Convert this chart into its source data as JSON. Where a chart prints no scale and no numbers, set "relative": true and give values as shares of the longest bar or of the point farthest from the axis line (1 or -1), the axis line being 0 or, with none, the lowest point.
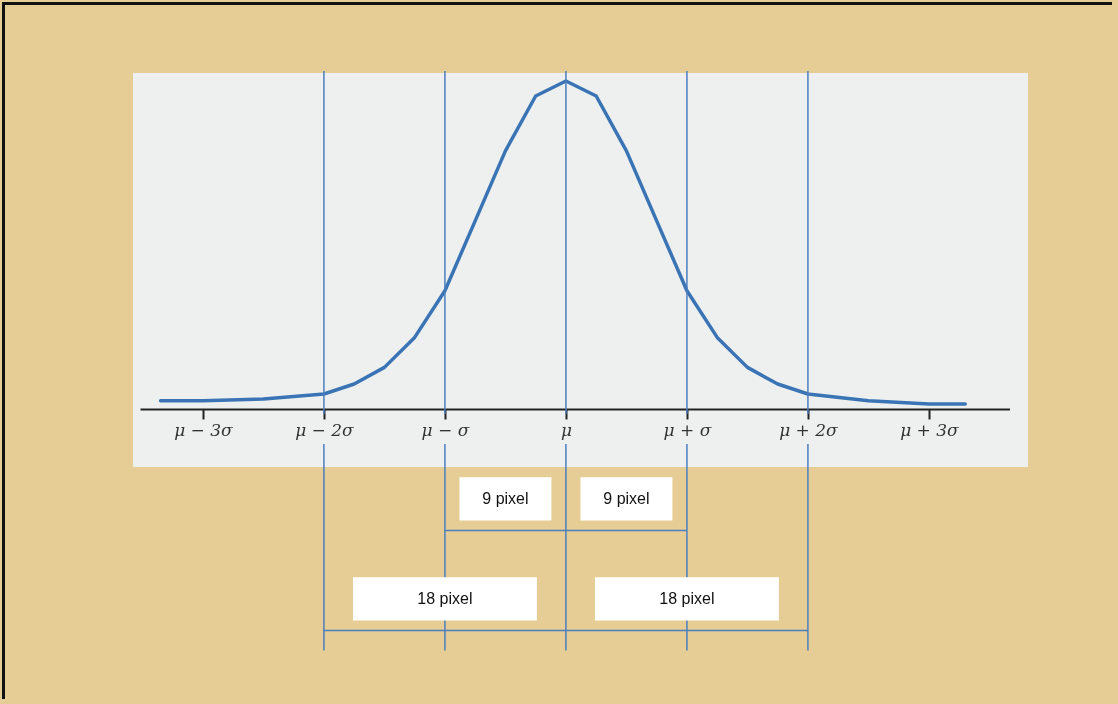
{
  "chart_data": {
    "type": "line",
    "relative": true,
    "x": [
      -3.35,
      -3,
      -2.5,
      -2,
      -1.75,
      -1.5,
      -1.25,
      -1,
      -0.75,
      -0.5,
      -0.25,
      0,
      0.25,
      0.5,
      0.75,
      1,
      1.25,
      1.5,
      1.75,
      2,
      2.5,
      3,
      3.3
    ],
    "series": [
      {
        "color": "#3a74b4",
        "values": [
          0.04,
          0.04,
          0.045,
          0.06,
          0.09,
          0.14,
          0.23,
          0.37,
          0.58,
          0.79,
          0.955,
          1,
          0.955,
          0.79,
          0.58,
          0.37,
          0.23,
          0.14,
          0.09,
          0.06,
          0.04,
          0.03,
          0.03
        ]
      }
    ],
    "xlim": [
      -3.52,
      3.67
    ],
    "xticks": [
      {
        "value": -3,
        "label": "μ − 3σ"
      },
      {
        "value": -2,
        "label": "μ − 2σ"
      },
      {
        "value": -1,
        "label": "μ − σ"
      },
      {
        "value": 0,
        "label": "μ"
      },
      {
        "value": 1,
        "label": "μ + σ"
      },
      {
        "value": 2,
        "label": "μ + 2σ"
      },
      {
        "value": 3,
        "label": "μ + 3σ"
      }
    ],
    "ref_lines": [
      {
        "axis": "x",
        "value": -2,
        "color": "#4a7ebf"
      },
      {
        "axis": "x",
        "value": -1,
        "color": "#4a7ebf"
      },
      {
        "axis": "x",
        "value": 0,
        "color": "#4a7ebf"
      },
      {
        "axis": "x",
        "value": 1,
        "color": "#4a7ebf"
      },
      {
        "axis": "x",
        "value": 2,
        "color": "#4a7ebf"
      }
    ],
    "annotations": [
      "9 pixel",
      "9 pixel",
      "18 pixel",
      "18 pixel"
    ],
    "grid": false,
    "marker": "none",
    "line_style": "solid"
  }
}
